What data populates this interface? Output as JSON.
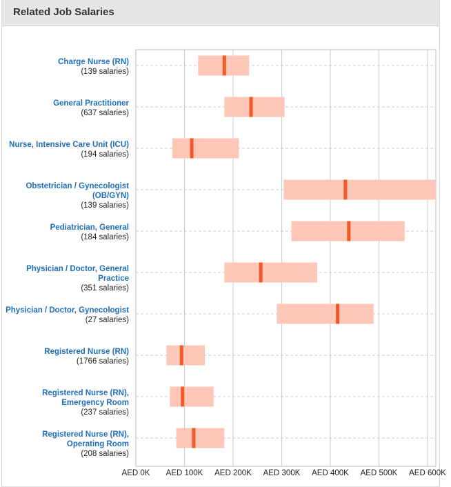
{
  "header": {
    "title": "Related Job Salaries"
  },
  "colors": {
    "range": "#fdc7b8",
    "median": "#f05a28",
    "link": "#1f6fba",
    "grid": "#cccccc"
  },
  "chart_data": {
    "type": "range-bar",
    "xlim": [
      0,
      600000
    ],
    "x_ticks": [
      {
        "value": 0,
        "label": "AED 0K"
      },
      {
        "value": 100000,
        "label": "AED 100K"
      },
      {
        "value": 200000,
        "label": "AED 200K"
      },
      {
        "value": 300000,
        "label": "AED 300K"
      },
      {
        "value": 400000,
        "label": "AED 400K"
      },
      {
        "value": 500000,
        "label": "AED 500K"
      },
      {
        "value": 600000,
        "label": "AED 600K"
      }
    ],
    "grid": true,
    "jobs": [
      {
        "name": "Charge Nurse (RN)",
        "count": "(139 salaries)",
        "low": 128000,
        "median": 182000,
        "high": 233000
      },
      {
        "name": "General Practitioner",
        "count": "(637 salaries)",
        "low": 182000,
        "median": 237000,
        "high": 306000
      },
      {
        "name": "Nurse, Intensive Care Unit (ICU)",
        "count": "(194 salaries)",
        "low": 75000,
        "median": 115000,
        "high": 212000
      },
      {
        "name": "Obstetrician / Gynecologist (OB/GYN)",
        "count": "(139 salaries)",
        "low": 304000,
        "median": 431000,
        "high": 620000
      },
      {
        "name": "Pediatrician, General",
        "count": "(184 salaries)",
        "low": 320000,
        "median": 438000,
        "high": 553000
      },
      {
        "name": "Physician / Doctor, General Practice",
        "count": "(351 salaries)",
        "low": 182000,
        "median": 257000,
        "high": 373000
      },
      {
        "name": "Physician / Doctor, Gynecologist",
        "count": "(27 salaries)",
        "low": 290000,
        "median": 415000,
        "high": 489000
      },
      {
        "name": "Registered Nurse (RN)",
        "count": "(1766 salaries)",
        "low": 63000,
        "median": 94000,
        "high": 142000
      },
      {
        "name": "Registered Nurse (RN), Emergency Room",
        "count": "(237 salaries)",
        "low": 70000,
        "median": 96000,
        "high": 160000
      },
      {
        "name": "Registered Nurse (RN), Operating Room",
        "count": "(208 salaries)",
        "low": 83000,
        "median": 119000,
        "high": 182000
      }
    ]
  }
}
